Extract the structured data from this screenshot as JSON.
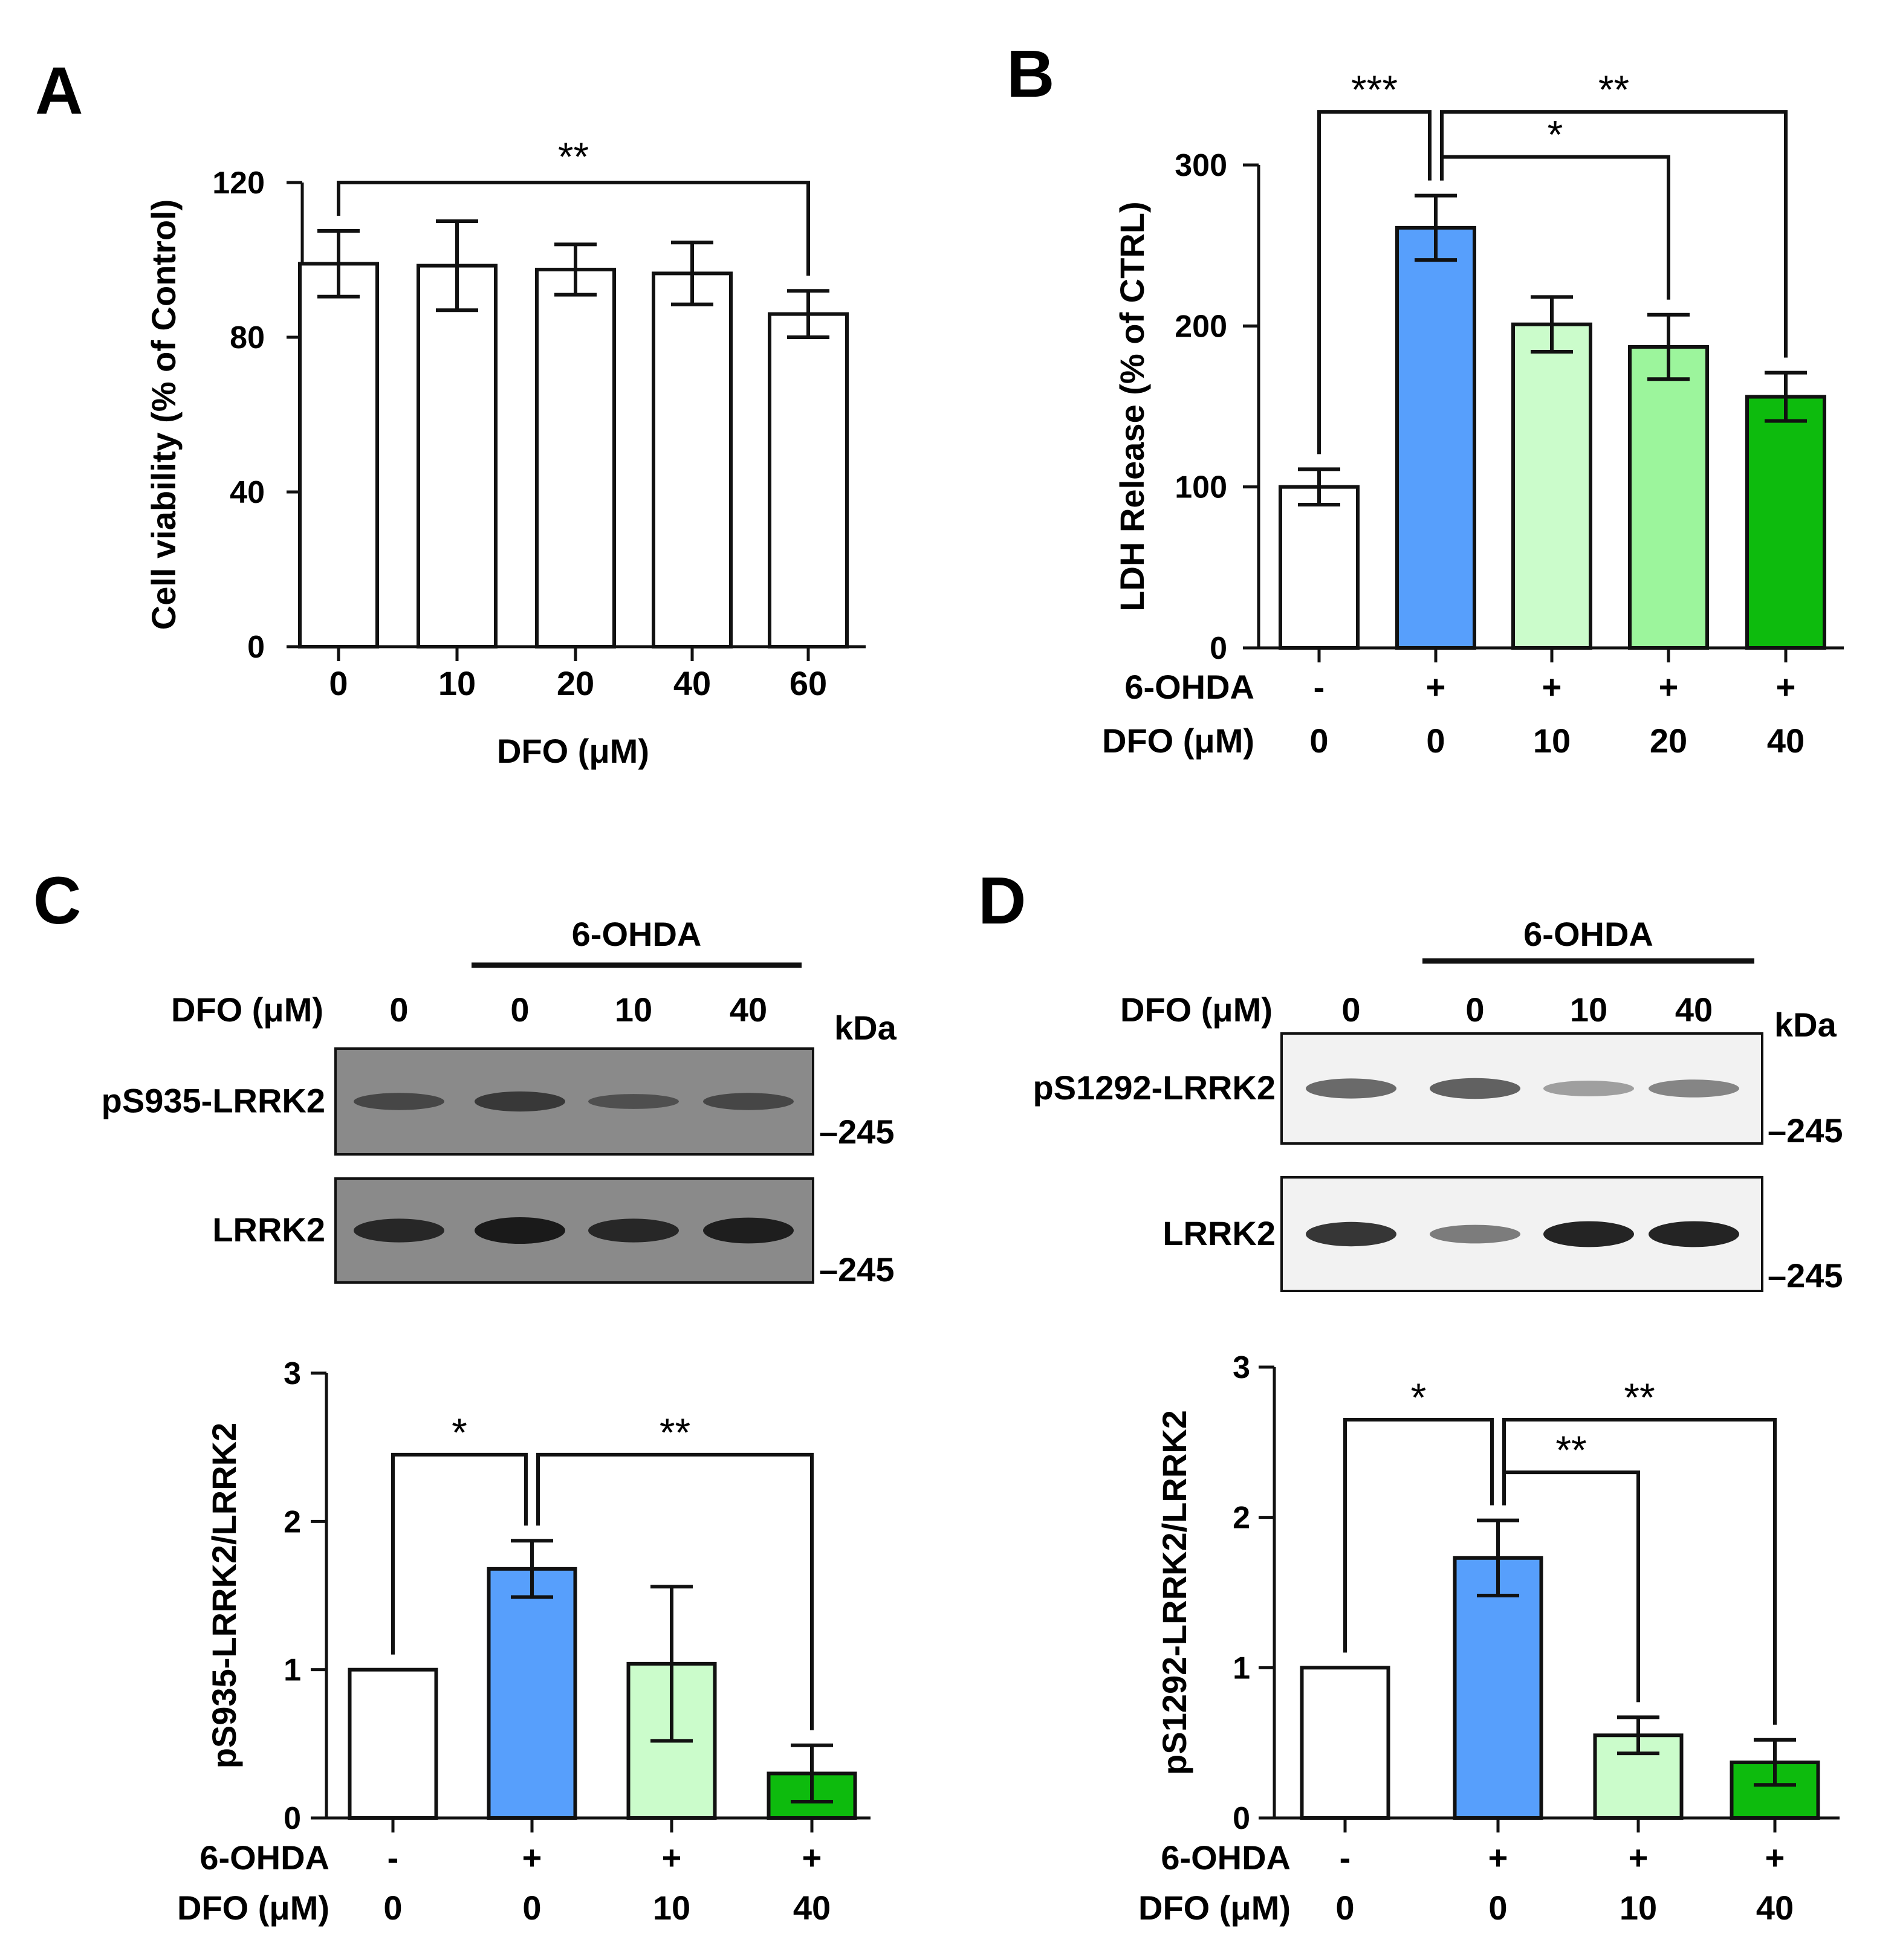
{
  "colors": {
    "white_bar": "#ffffff",
    "blue_bar": "#579ffc",
    "light_green_bar": "#cbfccb",
    "mid_green_bar": "#9cf59c",
    "dark_green_bar": "#0dbb0d",
    "stroke": "#111111"
  },
  "panels": [
    {
      "letter": "A",
      "blot": null,
      "chart_data": {
        "type": "bar",
        "ylabel": "Cell viability (% of Control)",
        "xlabel": "DFO (μM)",
        "categories": [
          "0",
          "10",
          "20",
          "40",
          "60"
        ],
        "values": [
          99,
          98.5,
          97.5,
          96.5,
          86
        ],
        "errors": [
          8.5,
          11.5,
          6.5,
          8,
          6
        ],
        "colors": [
          "white_bar",
          "white_bar",
          "white_bar",
          "white_bar",
          "white_bar"
        ],
        "ylim": [
          0,
          120
        ],
        "yticks": [
          0,
          40,
          80,
          120
        ],
        "ohda_row": null,
        "dfo_row_label": null,
        "significance": [
          {
            "from": 0,
            "to": 4,
            "level_value": 120,
            "label": "**"
          }
        ]
      }
    },
    {
      "letter": "B",
      "blot": null,
      "chart_data": {
        "type": "bar",
        "ylabel": "LDH Release (% of CTRL)",
        "xlabel": "",
        "categories": [
          "0",
          "0",
          "10",
          "20",
          "40"
        ],
        "values": [
          100,
          261,
          201,
          187,
          156
        ],
        "errors": [
          11,
          20,
          17,
          20,
          15
        ],
        "colors": [
          "white_bar",
          "blue_bar",
          "light_green_bar",
          "mid_green_bar",
          "dark_green_bar"
        ],
        "ylim": [
          0,
          300
        ],
        "yticks": [
          0,
          100,
          200,
          300
        ],
        "ohda_row_label": "6-OHDA",
        "ohda_row": [
          "-",
          "+",
          "+",
          "+",
          "+"
        ],
        "dfo_row_label": "DFO (μM)",
        "significance": [
          {
            "from": 0,
            "to": 1,
            "level_value": 333,
            "label": "***"
          },
          {
            "from": 1,
            "to": 4,
            "level_value": 333,
            "label": "**"
          },
          {
            "from": 1,
            "to": 3,
            "level_value": 305,
            "label": "*"
          }
        ]
      }
    },
    {
      "letter": "C",
      "blot": {
        "group_label": "6-OHDA",
        "dfo_label": "DFO (μM)",
        "lanes": [
          "0",
          "0",
          "10",
          "40"
        ],
        "unit": "kDa",
        "rows": [
          {
            "label": "pS935-LRRK2",
            "marker": "–245",
            "bands": [
              0.35,
              0.55,
              0.2,
              0.35
            ],
            "dark_background": true
          },
          {
            "label": "LRRK2",
            "marker": "–245",
            "bands": [
              0.8,
              1.0,
              0.8,
              0.95
            ],
            "dark_background": true
          }
        ]
      },
      "chart_data": {
        "type": "bar",
        "ylabel": "pS935-LRRK2/LRRK2",
        "xlabel": "",
        "categories": [
          "0",
          "0",
          "10",
          "40"
        ],
        "values": [
          1.0,
          1.68,
          1.04,
          0.3
        ],
        "errors": [
          0,
          0.19,
          0.52,
          0.19
        ],
        "colors": [
          "white_bar",
          "blue_bar",
          "light_green_bar",
          "dark_green_bar"
        ],
        "ylim": [
          0,
          3
        ],
        "yticks": [
          0,
          1,
          2,
          3
        ],
        "ohda_row_label": "6-OHDA",
        "ohda_row": [
          "-",
          "+",
          "+",
          "+"
        ],
        "dfo_row_label": "DFO (μM)",
        "significance": [
          {
            "from": 0,
            "to": 1,
            "level_value": 2.45,
            "label": "*"
          },
          {
            "from": 1,
            "to": 3,
            "level_value": 2.45,
            "label": "**"
          }
        ]
      }
    },
    {
      "letter": "D",
      "blot": {
        "group_label": "6-OHDA",
        "dfo_label": "DFO (μM)",
        "lanes": [
          "0",
          "0",
          "10",
          "40"
        ],
        "unit": "kDa",
        "rows": [
          {
            "label": "pS1292-LRRK2",
            "marker": "–245",
            "bands": [
              0.55,
              0.6,
              0.25,
              0.4
            ],
            "dark_background": false
          },
          {
            "label": "LRRK2",
            "marker": "–245",
            "bands": [
              0.85,
              0.45,
              0.95,
              0.95
            ],
            "dark_background": false
          }
        ]
      },
      "chart_data": {
        "type": "bar",
        "ylabel": "pS1292-LRRK2/LRRK2",
        "xlabel": "",
        "categories": [
          "0",
          "0",
          "10",
          "40"
        ],
        "values": [
          1.0,
          1.73,
          0.55,
          0.37
        ],
        "errors": [
          0,
          0.25,
          0.12,
          0.15
        ],
        "colors": [
          "white_bar",
          "blue_bar",
          "light_green_bar",
          "dark_green_bar"
        ],
        "ylim": [
          0,
          3
        ],
        "yticks": [
          0,
          1,
          2,
          3
        ],
        "ohda_row_label": "6-OHDA",
        "ohda_row": [
          "-",
          "+",
          "+",
          "+"
        ],
        "dfo_row_label": "DFO (μM)",
        "significance": [
          {
            "from": 0,
            "to": 1,
            "level_value": 2.65,
            "label": "*"
          },
          {
            "from": 1,
            "to": 3,
            "level_value": 2.65,
            "label": "**"
          },
          {
            "from": 1,
            "to": 2,
            "level_value": 2.3,
            "label": "**"
          }
        ]
      }
    }
  ]
}
